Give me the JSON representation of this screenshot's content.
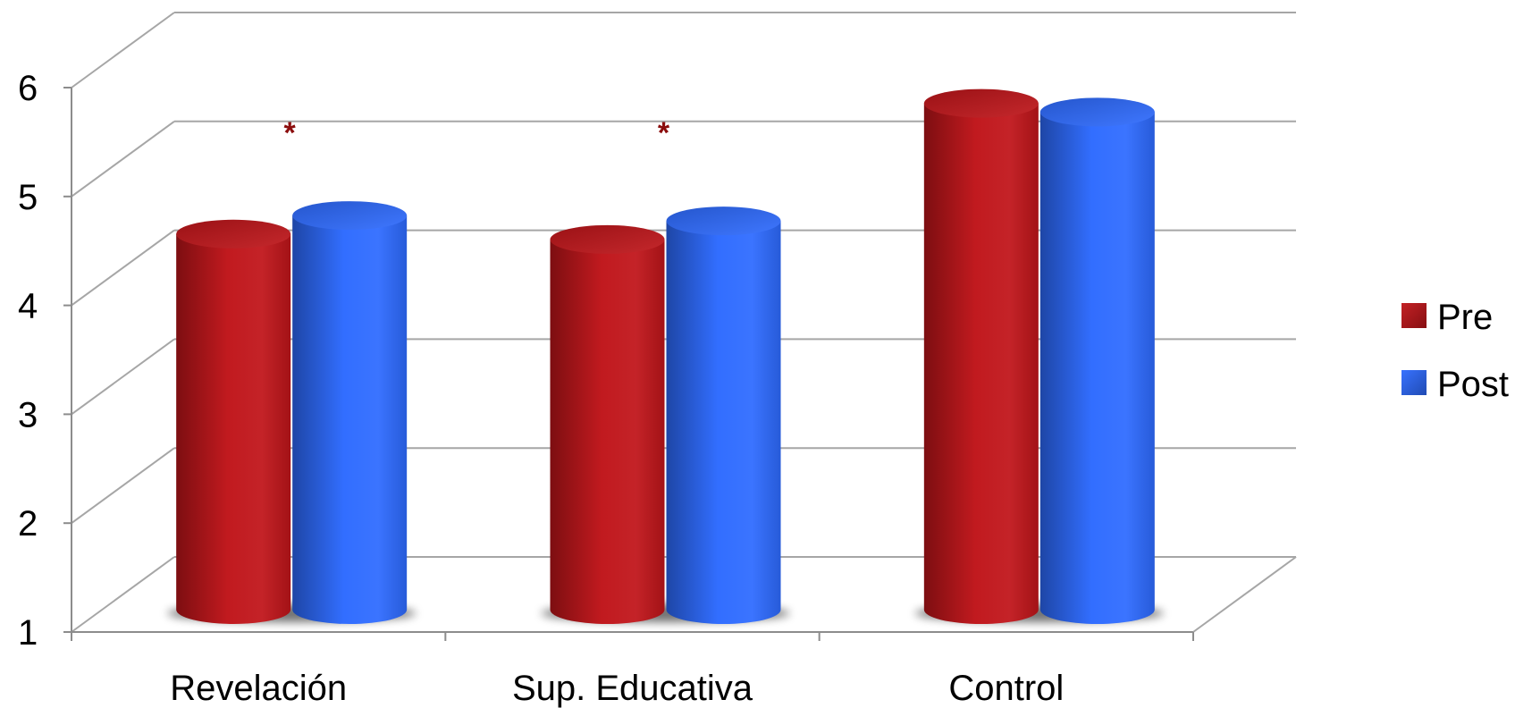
{
  "chart_data": {
    "type": "bar",
    "categories": [
      "Revelación",
      "Sup. Educativa",
      "Control"
    ],
    "series": [
      {
        "name": "Pre",
        "values": [
          4.45,
          4.4,
          5.65
        ],
        "color": "#c0151a"
      },
      {
        "name": "Post",
        "values": [
          4.62,
          4.57,
          5.57
        ],
        "color": "#2e6bff"
      }
    ],
    "ylim": [
      1,
      6
    ],
    "yticks": [
      "1",
      "2",
      "3",
      "4",
      "5",
      "6"
    ],
    "grid": true,
    "legend_position": "right",
    "annotations": [
      {
        "text": "*",
        "category": "Revelación",
        "value": 5.4,
        "color": "#8b0d0d"
      },
      {
        "text": "*",
        "category": "Sup. Educativa",
        "value": 5.4,
        "color": "#8b0d0d"
      }
    ]
  }
}
